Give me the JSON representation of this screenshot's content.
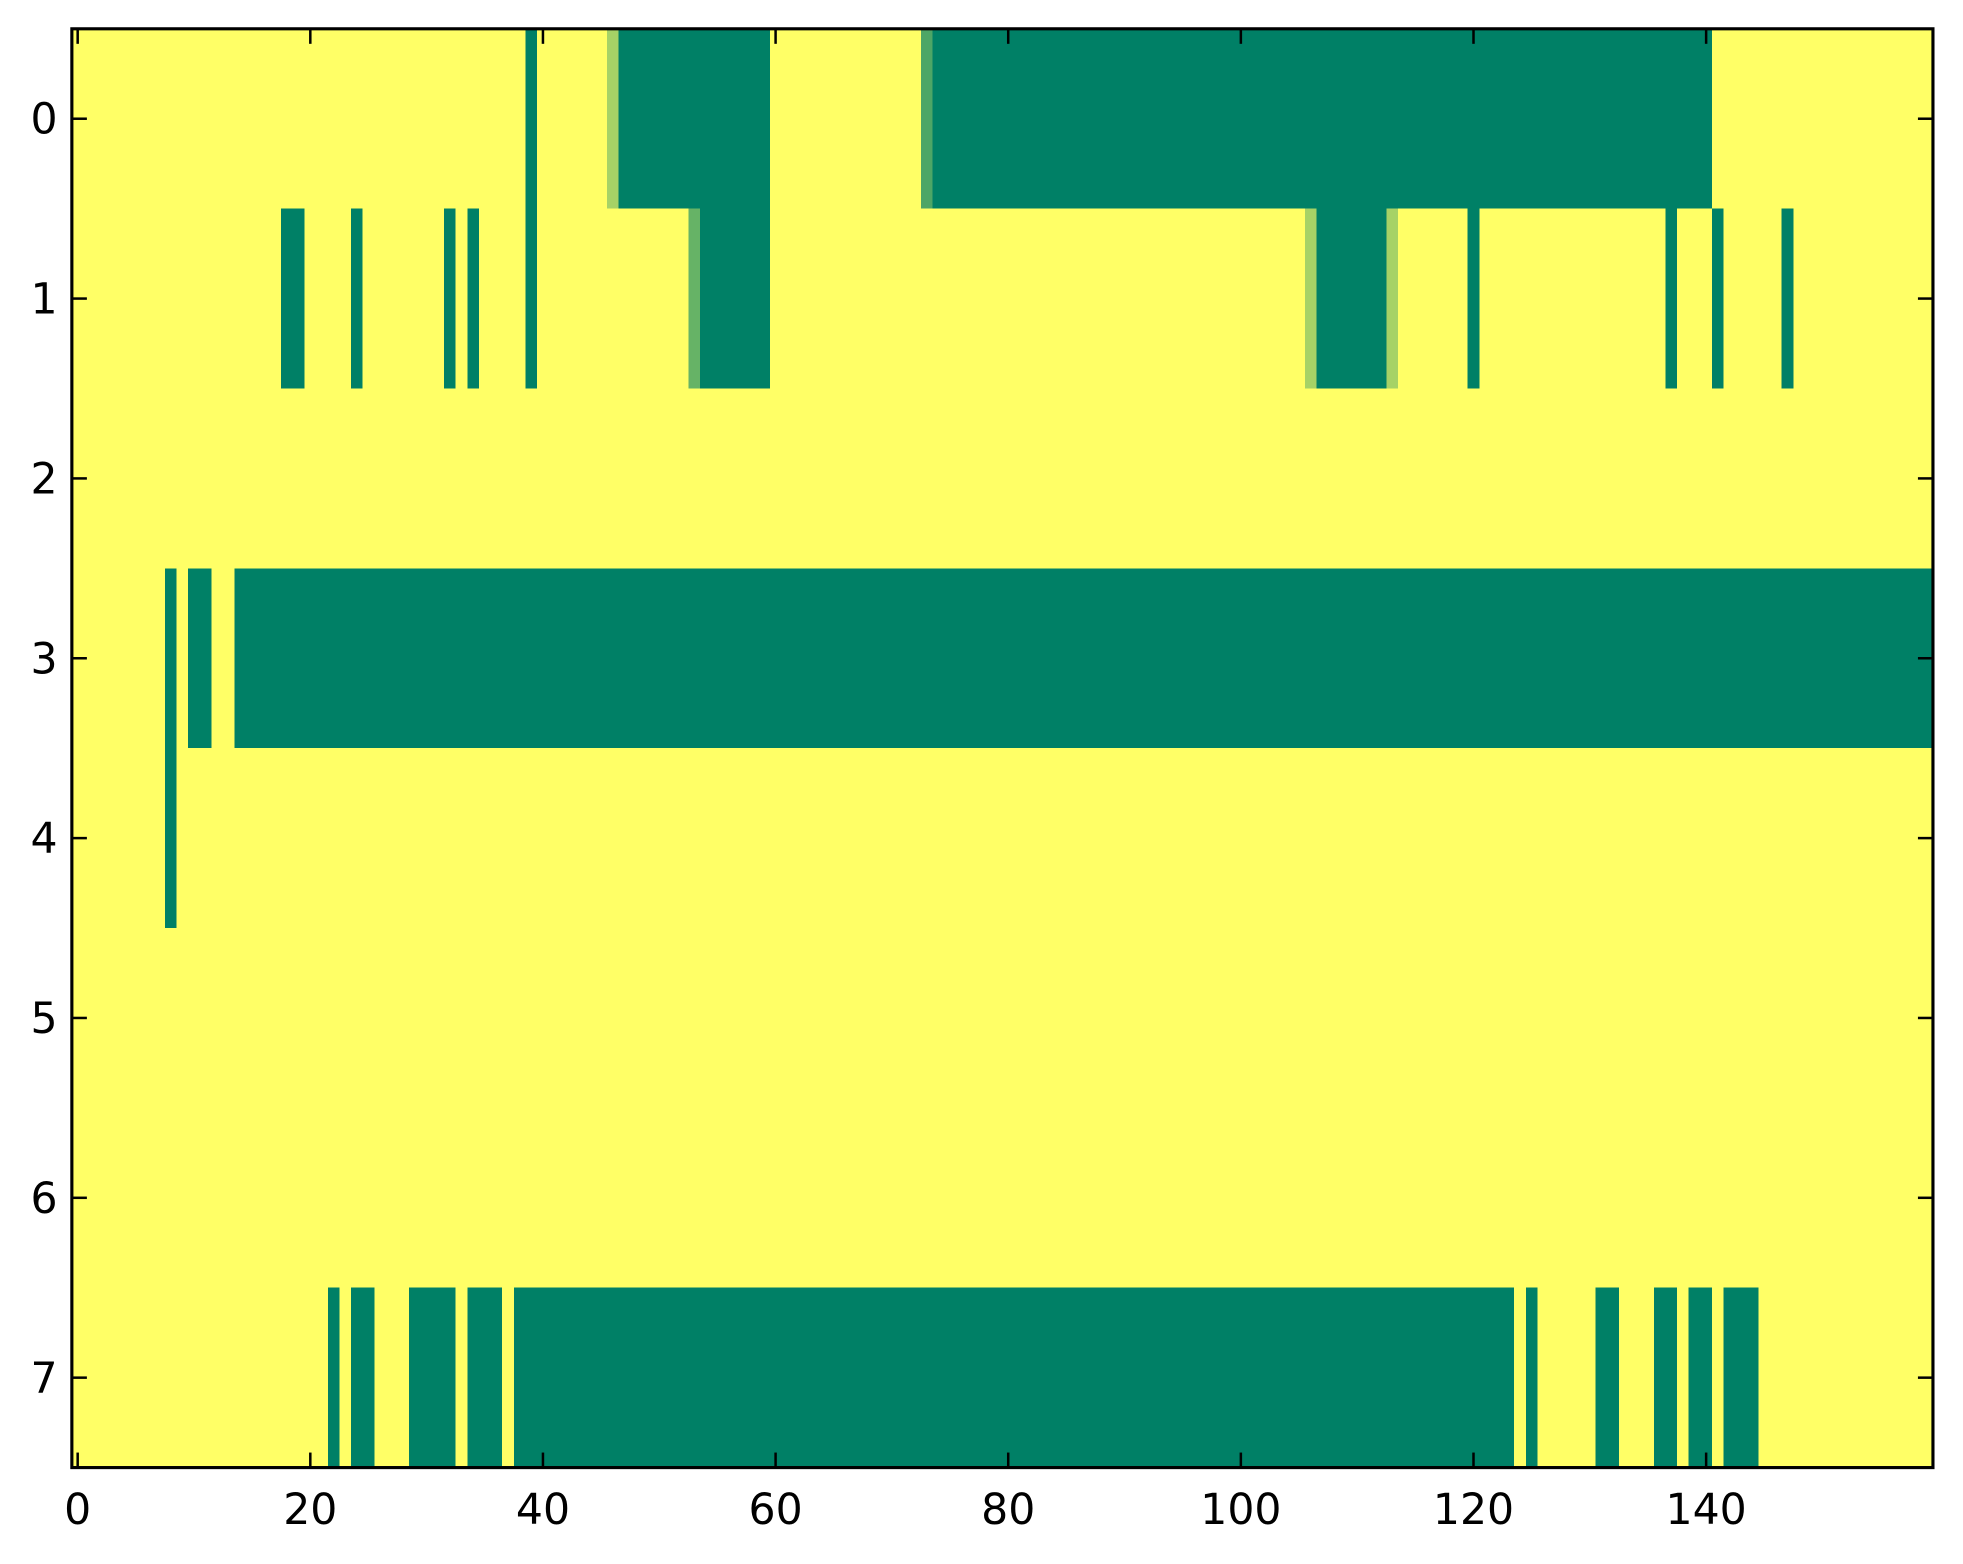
{
  "chart_data": {
    "type": "heatmap",
    "colormap": "summer",
    "clim": [
      0,
      1
    ],
    "xlim": [
      -0.5,
      159.5
    ],
    "ylim": [
      7.5,
      -0.5
    ],
    "xticks": [
      0,
      20,
      40,
      60,
      80,
      100,
      120,
      140
    ],
    "yticks": [
      0,
      1,
      2,
      3,
      4,
      5,
      6,
      7
    ],
    "z": [
      [
        1,
        1,
        1,
        1,
        1,
        1,
        1,
        1,
        1,
        1,
        1,
        1,
        1,
        1,
        1,
        1,
        1,
        1,
        1,
        1,
        1,
        1,
        1,
        1,
        1,
        1,
        1,
        1,
        1,
        1,
        1,
        1,
        1,
        1,
        1,
        1,
        1,
        1,
        1,
        0,
        1,
        1,
        1,
        1,
        1,
        1,
        0.65,
        0,
        0,
        0,
        0,
        0,
        0,
        0,
        0,
        0,
        0,
        0,
        0,
        0,
        1,
        1,
        1,
        1,
        1,
        1,
        1,
        1,
        1,
        1,
        1,
        1,
        1,
        0.3,
        0,
        0,
        0,
        0,
        0,
        0,
        0,
        0,
        0,
        0,
        0,
        0,
        0,
        0,
        0,
        0,
        0,
        0,
        0,
        0,
        0,
        0,
        0,
        0,
        0,
        0,
        0,
        0,
        0,
        0,
        0,
        0,
        0,
        0,
        0,
        0,
        0,
        0,
        0,
        0,
        0,
        0,
        0,
        0,
        0,
        0,
        0,
        0,
        0,
        0,
        0,
        0,
        0,
        0,
        0,
        0,
        0,
        0,
        0,
        0,
        0,
        0,
        0,
        0,
        0,
        0,
        0,
        1,
        1,
        1,
        1,
        1,
        1,
        1,
        1,
        1,
        1,
        1,
        1,
        1,
        1,
        1,
        1,
        1,
        1,
        1
      ],
      [
        1,
        1,
        1,
        1,
        1,
        1,
        1,
        1,
        1,
        1,
        1,
        1,
        1,
        1,
        1,
        1,
        1,
        1,
        0,
        0,
        1,
        1,
        1,
        1,
        0,
        1,
        1,
        1,
        1,
        1,
        1,
        1,
        0,
        1,
        0,
        1,
        1,
        1,
        1,
        0,
        1,
        1,
        1,
        1,
        1,
        1,
        1,
        1,
        1,
        1,
        1,
        1,
        1,
        0.4,
        0,
        0,
        0,
        0,
        0,
        0,
        1,
        1,
        1,
        1,
        1,
        1,
        1,
        1,
        1,
        1,
        1,
        1,
        1,
        1,
        1,
        1,
        1,
        1,
        1,
        1,
        1,
        1,
        1,
        1,
        1,
        1,
        1,
        1,
        1,
        1,
        1,
        1,
        1,
        1,
        1,
        1,
        1,
        1,
        1,
        1,
        1,
        1,
        1,
        1,
        1,
        1,
        0.65,
        0,
        0,
        0,
        0,
        0,
        0,
        0.65,
        1,
        1,
        1,
        1,
        1,
        1,
        0,
        1,
        1,
        1,
        1,
        1,
        1,
        1,
        1,
        1,
        1,
        1,
        1,
        1,
        1,
        1,
        1,
        0,
        1,
        1,
        1,
        0,
        1,
        1,
        1,
        1,
        1,
        0,
        1,
        1,
        1,
        1,
        1,
        1,
        1,
        1,
        1,
        1,
        1,
        1
      ],
      [
        1,
        1,
        1,
        1,
        1,
        1,
        1,
        1,
        1,
        1,
        1,
        1,
        1,
        1,
        1,
        1,
        1,
        1,
        1,
        1,
        1,
        1,
        1,
        1,
        1,
        1,
        1,
        1,
        1,
        1,
        1,
        1,
        1,
        1,
        1,
        1,
        1,
        1,
        1,
        1,
        1,
        1,
        1,
        1,
        1,
        1,
        1,
        1,
        1,
        1,
        1,
        1,
        1,
        1,
        1,
        1,
        1,
        1,
        1,
        1,
        1,
        1,
        1,
        1,
        1,
        1,
        1,
        1,
        1,
        1,
        1,
        1,
        1,
        1,
        1,
        1,
        1,
        1,
        1,
        1,
        1,
        1,
        1,
        1,
        1,
        1,
        1,
        1,
        1,
        1,
        1,
        1,
        1,
        1,
        1,
        1,
        1,
        1,
        1,
        1,
        1,
        1,
        1,
        1,
        1,
        1,
        1,
        1,
        1,
        1,
        1,
        1,
        1,
        1,
        1,
        1,
        1,
        1,
        1,
        1,
        1,
        1,
        1,
        1,
        1,
        1,
        1,
        1,
        1,
        1,
        1,
        1,
        1,
        1,
        1,
        1,
        1,
        1,
        1,
        1,
        1,
        1,
        1,
        1,
        1,
        1,
        1,
        1,
        1,
        1,
        1,
        1,
        1,
        1,
        1,
        1,
        1,
        1,
        1,
        1
      ],
      [
        1,
        1,
        1,
        1,
        1,
        1,
        1,
        1,
        0,
        1,
        0,
        0,
        1,
        1,
        0,
        0,
        0,
        0,
        0,
        0,
        0,
        0,
        0,
        0,
        0,
        0,
        0,
        0,
        0,
        0,
        0,
        0,
        0,
        0,
        0,
        0,
        0,
        0,
        0,
        0,
        0,
        0,
        0,
        0,
        0,
        0,
        0,
        0,
        0,
        0,
        0,
        0,
        0,
        0,
        0,
        0,
        0,
        0,
        0,
        0,
        0,
        0,
        0,
        0,
        0,
        0,
        0,
        0,
        0,
        0,
        0,
        0,
        0,
        0,
        0,
        0,
        0,
        0,
        0,
        0,
        0,
        0,
        0,
        0,
        0,
        0,
        0,
        0,
        0,
        0,
        0,
        0,
        0,
        0,
        0,
        0,
        0,
        0,
        0,
        0,
        0,
        0,
        0,
        0,
        0,
        0,
        0,
        0,
        0,
        0,
        0,
        0,
        0,
        0,
        0,
        0,
        0,
        0,
        0,
        0,
        0,
        0,
        0,
        0,
        0,
        0,
        0,
        0,
        0,
        0,
        0,
        0,
        0,
        0,
        0,
        0,
        0,
        0,
        0,
        0,
        0,
        0,
        0,
        0,
        0,
        0,
        0,
        0,
        0,
        0,
        0,
        0,
        0,
        0,
        0,
        0,
        0,
        0,
        0,
        0
      ],
      [
        1,
        1,
        1,
        1,
        1,
        1,
        1,
        1,
        0,
        1,
        1,
        1,
        1,
        1,
        1,
        1,
        1,
        1,
        1,
        1,
        1,
        1,
        1,
        1,
        1,
        1,
        1,
        1,
        1,
        1,
        1,
        1,
        1,
        1,
        1,
        1,
        1,
        1,
        1,
        1,
        1,
        1,
        1,
        1,
        1,
        1,
        1,
        1,
        1,
        1,
        1,
        1,
        1,
        1,
        1,
        1,
        1,
        1,
        1,
        1,
        1,
        1,
        1,
        1,
        1,
        1,
        1,
        1,
        1,
        1,
        1,
        1,
        1,
        1,
        1,
        1,
        1,
        1,
        1,
        1,
        1,
        1,
        1,
        1,
        1,
        1,
        1,
        1,
        1,
        1,
        1,
        1,
        1,
        1,
        1,
        1,
        1,
        1,
        1,
        1,
        1,
        1,
        1,
        1,
        1,
        1,
        1,
        1,
        1,
        1,
        1,
        1,
        1,
        1,
        1,
        1,
        1,
        1,
        1,
        1,
        1,
        1,
        1,
        1,
        1,
        1,
        1,
        1,
        1,
        1,
        1,
        1,
        1,
        1,
        1,
        1,
        1,
        1,
        1,
        1,
        1,
        1,
        1,
        1,
        1,
        1,
        1,
        1,
        1,
        1,
        1,
        1,
        1,
        1,
        1,
        1,
        1,
        1,
        1,
        1
      ],
      [
        1,
        1,
        1,
        1,
        1,
        1,
        1,
        1,
        1,
        1,
        1,
        1,
        1,
        1,
        1,
        1,
        1,
        1,
        1,
        1,
        1,
        1,
        1,
        1,
        1,
        1,
        1,
        1,
        1,
        1,
        1,
        1,
        1,
        1,
        1,
        1,
        1,
        1,
        1,
        1,
        1,
        1,
        1,
        1,
        1,
        1,
        1,
        1,
        1,
        1,
        1,
        1,
        1,
        1,
        1,
        1,
        1,
        1,
        1,
        1,
        1,
        1,
        1,
        1,
        1,
        1,
        1,
        1,
        1,
        1,
        1,
        1,
        1,
        1,
        1,
        1,
        1,
        1,
        1,
        1,
        1,
        1,
        1,
        1,
        1,
        1,
        1,
        1,
        1,
        1,
        1,
        1,
        1,
        1,
        1,
        1,
        1,
        1,
        1,
        1,
        1,
        1,
        1,
        1,
        1,
        1,
        1,
        1,
        1,
        1,
        1,
        1,
        1,
        1,
        1,
        1,
        1,
        1,
        1,
        1,
        1,
        1,
        1,
        1,
        1,
        1,
        1,
        1,
        1,
        1,
        1,
        1,
        1,
        1,
        1,
        1,
        1,
        1,
        1,
        1,
        1,
        1,
        1,
        1,
        1,
        1,
        1,
        1,
        1,
        1,
        1,
        1,
        1,
        1,
        1,
        1,
        1,
        1,
        1,
        1
      ],
      [
        1,
        1,
        1,
        1,
        1,
        1,
        1,
        1,
        1,
        1,
        1,
        1,
        1,
        1,
        1,
        1,
        1,
        1,
        1,
        1,
        1,
        1,
        1,
        1,
        1,
        1,
        1,
        1,
        1,
        1,
        1,
        1,
        1,
        1,
        1,
        1,
        1,
        1,
        1,
        1,
        1,
        1,
        1,
        1,
        1,
        1,
        1,
        1,
        1,
        1,
        1,
        1,
        1,
        1,
        1,
        1,
        1,
        1,
        1,
        1,
        1,
        1,
        1,
        1,
        1,
        1,
        1,
        1,
        1,
        1,
        1,
        1,
        1,
        1,
        1,
        1,
        1,
        1,
        1,
        1,
        1,
        1,
        1,
        1,
        1,
        1,
        1,
        1,
        1,
        1,
        1,
        1,
        1,
        1,
        1,
        1,
        1,
        1,
        1,
        1,
        1,
        1,
        1,
        1,
        1,
        1,
        1,
        1,
        1,
        1,
        1,
        1,
        1,
        1,
        1,
        1,
        1,
        1,
        1,
        1,
        1,
        1,
        1,
        1,
        1,
        1,
        1,
        1,
        1,
        1,
        1,
        1,
        1,
        1,
        1,
        1,
        1,
        1,
        1,
        1,
        1,
        1,
        1,
        1,
        1,
        1,
        1,
        1,
        1,
        1,
        1,
        1,
        1,
        1,
        1,
        1,
        1,
        1,
        1,
        1
      ],
      [
        1,
        1,
        1,
        1,
        1,
        1,
        1,
        1,
        1,
        1,
        1,
        1,
        1,
        1,
        1,
        1,
        1,
        1,
        1,
        1,
        1,
        1,
        0,
        1,
        0,
        0,
        1,
        1,
        1,
        0,
        0,
        0,
        0,
        1,
        0,
        0,
        0,
        1,
        0,
        0,
        0,
        0,
        0,
        0,
        0,
        0,
        0,
        0,
        0,
        0,
        0,
        0,
        0,
        0,
        0,
        0,
        0,
        0,
        0,
        0,
        0,
        0,
        0,
        0,
        0,
        0,
        0,
        0,
        0,
        0,
        0,
        0,
        0,
        0,
        0,
        0,
        0,
        0,
        0,
        0,
        0,
        0,
        0,
        0,
        0,
        0,
        0,
        0,
        0,
        0,
        0,
        0,
        0,
        0,
        0,
        0,
        0,
        0,
        0,
        0,
        0,
        0,
        0,
        0,
        0,
        0,
        0,
        0,
        0,
        0,
        0,
        0,
        0,
        0,
        0,
        0,
        0,
        0,
        0,
        0,
        0,
        0,
        0,
        0,
        1,
        0,
        1,
        1,
        1,
        1,
        1,
        0,
        0,
        1,
        1,
        1,
        0,
        0,
        1,
        0,
        0,
        1,
        0,
        0,
        0,
        1,
        1,
        1,
        1,
        1,
        1,
        1,
        1,
        1,
        1,
        1,
        1,
        1,
        1,
        1
      ]
    ]
  }
}
